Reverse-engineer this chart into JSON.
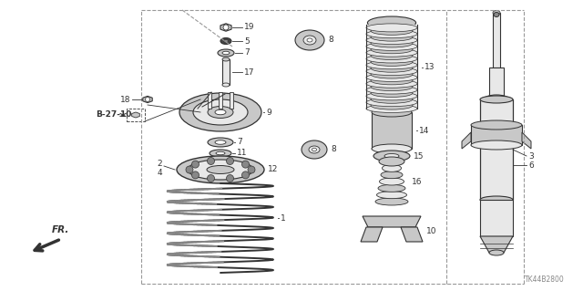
{
  "bg_color": "#ffffff",
  "line_color": "#333333",
  "catalog_num": "TK44B2800",
  "gray_fill": "#c8c8c8",
  "dark_gray": "#888888",
  "light_gray": "#e8e8e8",
  "dashed_color": "#999999"
}
